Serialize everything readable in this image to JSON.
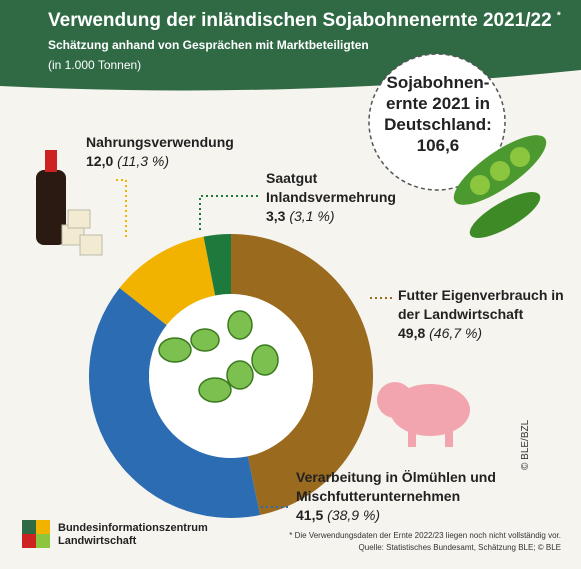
{
  "chart_data": {
    "type": "donut",
    "title": "Verwendung der inländischen Sojabohnenernte 2021/22",
    "title_mark": "*",
    "subtitle": "Schätzung anhand von Gesprächen mit Marktbeteiligten",
    "unit": "(in 1.000 Tonnen)",
    "categories": [
      "Futter Eigenverbrauch in der Landwirtschaft",
      "Verarbeitung in Ölmühlen und Mischfutterunternehmen",
      "Nahrungsverwendung",
      "Saatgut Inlandsvermehrung"
    ],
    "series": [
      {
        "values": [
          49.8,
          41.5,
          12.0,
          3.3
        ],
        "value_labels": [
          "49,8",
          "41,5",
          "12,0",
          "3,3"
        ],
        "shares": [
          46.7,
          38.9,
          11.3,
          3.1
        ],
        "share_labels": [
          "(46,7 %)",
          "(38,9 %)",
          "(11,3 %)",
          "(3,1 %)"
        ],
        "colors": [
          "#9a6a1f",
          "#2b6cb3",
          "#f1b300",
          "#1e7a3c"
        ]
      }
    ],
    "total_text": "Sojabohnen- ernte 2021 in Deutschland:",
    "total": 106.6,
    "total_label": "106,6",
    "logo_text": "Bundesinformationszentrum Landwirtschaft",
    "footnote": "* Die Verwendungsdaten der Ernte 2022/23 liegen noch nicht vollständig vor.",
    "source": "Quelle: Statistisches Bundesamt, Schätzung BLE; © BLE",
    "copyright": "© BLE/BZL"
  }
}
